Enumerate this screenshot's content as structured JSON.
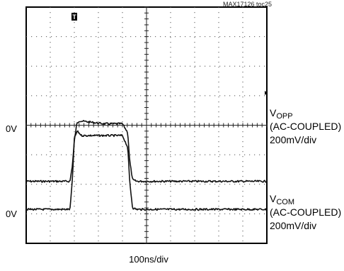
{
  "figure_tag": "MAX17126 toc25",
  "chart_data": {
    "type": "line",
    "title": "",
    "xlabel": "100ns/div",
    "grid": true,
    "divisions": {
      "x": 10,
      "y": 8
    },
    "time_per_div_ns": 100,
    "trigger_marker": "T",
    "series": [
      {
        "name": "VOPP",
        "name_main": "V",
        "name_sub": "OPP",
        "coupling": "(AC-COUPLED)",
        "scale": "200mV/div",
        "ground_label": "0V",
        "ground_div": -1.9,
        "x_ns": [
          0,
          182,
          192,
          200,
          210,
          220,
          320,
          400,
          422,
          430,
          442,
          460,
          500,
          1000
        ],
        "y_div": [
          -1.9,
          -1.9,
          -1.35,
          -0.55,
          0.05,
          0.15,
          0.05,
          0.05,
          -0.25,
          -1.2,
          -1.85,
          -1.9,
          -1.9,
          -1.9
        ]
      },
      {
        "name": "VCOM",
        "name_main": "V",
        "name_sub": "COM",
        "coupling": "(AC-COUPLED)",
        "scale": "200mV/div",
        "ground_label": "0V",
        "ground_div": -2.85,
        "x_ns": [
          0,
          182,
          192,
          200,
          212,
          230,
          320,
          400,
          422,
          430,
          442,
          460,
          500,
          1000
        ],
        "y_div": [
          -2.85,
          -2.85,
          -1.85,
          -0.45,
          -0.2,
          -0.35,
          -0.35,
          -0.35,
          -0.75,
          -1.9,
          -2.8,
          -2.85,
          -2.85,
          -2.85
        ]
      }
    ]
  },
  "colors": {
    "trace": "#111111",
    "grid": "#555555",
    "frame": "#000000"
  }
}
